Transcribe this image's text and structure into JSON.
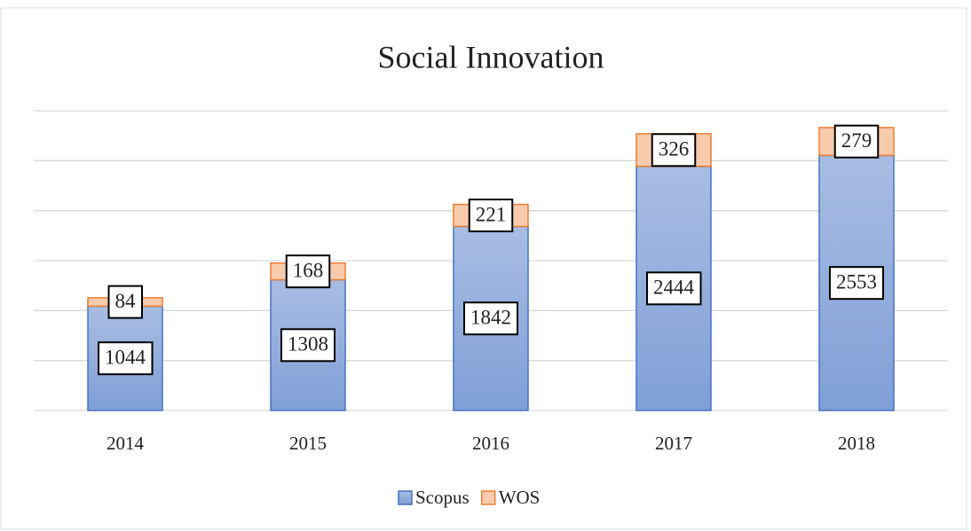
{
  "chart_data": {
    "type": "bar",
    "stacked": true,
    "title": "Social Innovation",
    "categories": [
      "2014",
      "2015",
      "2016",
      "2017",
      "2018"
    ],
    "series": [
      {
        "name": "Scopus",
        "color": "#8eaadb",
        "edge": "#4472c4",
        "values": [
          1044,
          1308,
          1842,
          2444,
          2553
        ]
      },
      {
        "name": "WOS",
        "color": "#f8cbad",
        "edge": "#ed7d31",
        "values": [
          84,
          168,
          221,
          326,
          279
        ]
      }
    ],
    "ylim": [
      0,
      3000
    ],
    "yticks": [
      0,
      500,
      1000,
      1500,
      2000,
      2500,
      3000
    ],
    "grid": true,
    "show_y_tick_labels": false,
    "legend": "bottom"
  }
}
